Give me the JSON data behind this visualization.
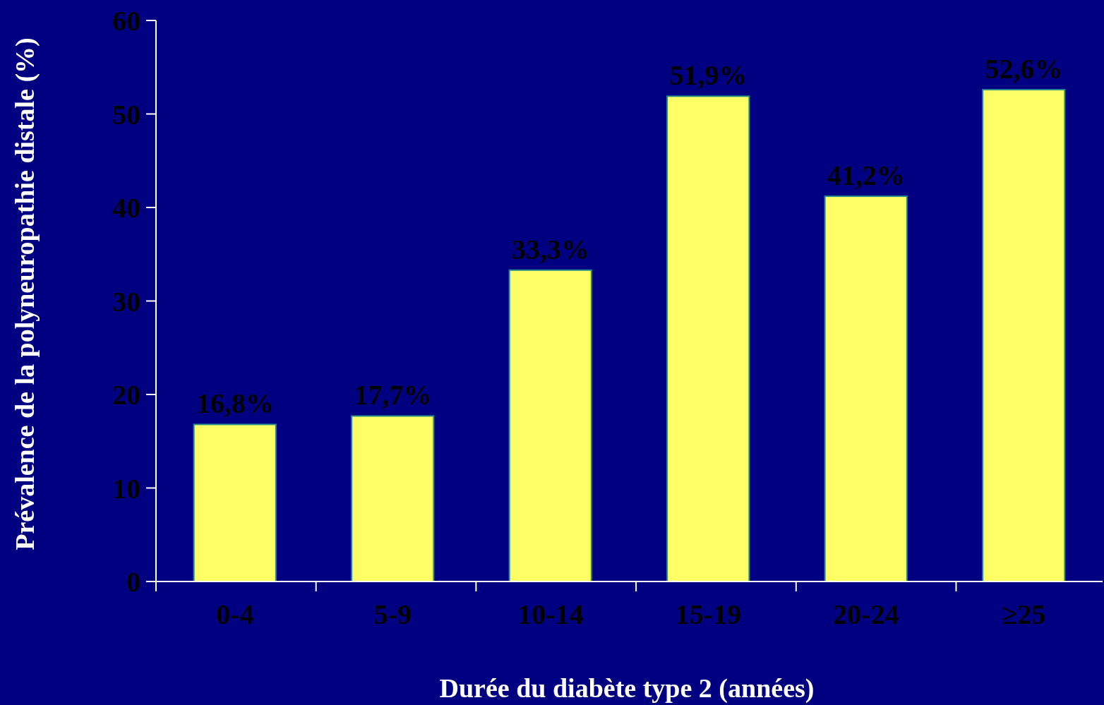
{
  "chart_data": {
    "type": "bar",
    "xlabel": "Durée du diabète type 2 (années)",
    "ylabel": "Prévalence de la polyneuropathie distale (%)",
    "categories": [
      "0-4",
      "5-9",
      "10-14",
      "15-19",
      "20-24",
      "≥25"
    ],
    "values": [
      16.8,
      17.7,
      33.3,
      51.9,
      41.2,
      52.6
    ],
    "value_labels": [
      "16,8%",
      "17,7%",
      "33,3%",
      "51,9%",
      "41,2%",
      "52,6%"
    ],
    "color": "#ffff66",
    "ylim": [
      0,
      60
    ],
    "yticks": [
      0,
      10,
      20,
      30,
      40,
      50,
      60
    ],
    "grid": false
  }
}
